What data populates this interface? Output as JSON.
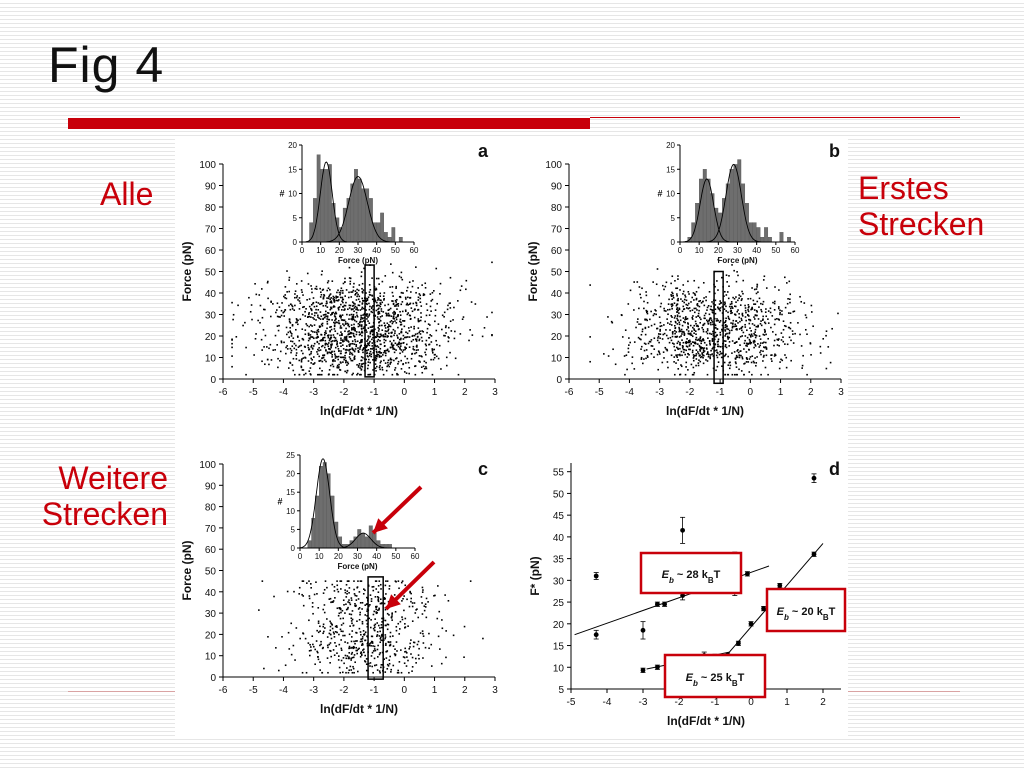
{
  "slide": {
    "title": "Fig 4",
    "labels": {
      "alle": "Alle",
      "erstes_line1": "Erstes",
      "erstes_line2": "Strecken",
      "weitere_line1": "Weitere",
      "weitere_line2": "Strecken"
    },
    "colors": {
      "accent_red": "#c8000a",
      "marker": "#000000"
    }
  },
  "chart_data": [
    {
      "panel": "a",
      "type": "scatter",
      "xlabel": "ln(dF/dt * 1/N)",
      "ylabel": "Force (pN)",
      "xlim": [
        -6,
        3
      ],
      "ylim": [
        0,
        100
      ],
      "xticks": [
        -6,
        -5,
        -4,
        -3,
        -2,
        -1,
        0,
        1,
        2,
        3
      ],
      "yticks": [
        0,
        10,
        20,
        30,
        40,
        50,
        60,
        70,
        80,
        90,
        100
      ],
      "points": {
        "count": 1600,
        "x_center": -1.5,
        "x_spread": 1.5,
        "x_range": [
          -5.7,
          2.9
        ],
        "y_range": [
          2,
          62
        ],
        "y_modes": [
          12,
          30
        ]
      },
      "selection_box": {
        "x": [
          -1.3,
          -1.0
        ],
        "y": [
          1,
          53
        ]
      },
      "inset_histogram": {
        "xlabel": "Force (pN)",
        "ylabel": "#",
        "xlim": [
          0,
          60
        ],
        "ylim": [
          0,
          20
        ],
        "xticks": [
          0,
          10,
          20,
          30,
          40,
          50,
          60
        ],
        "yticks": [
          0,
          5,
          10,
          15,
          20
        ],
        "bin_width": 2,
        "bin_start": [
          4,
          6,
          8,
          10,
          12,
          14,
          16,
          18,
          20,
          22,
          24,
          26,
          28,
          30,
          32,
          34,
          36,
          38,
          40,
          42,
          44,
          46,
          48,
          50,
          52
        ],
        "counts": [
          4,
          9,
          18,
          15,
          15,
          16,
          8,
          5,
          3,
          7,
          9,
          12,
          15,
          13,
          11,
          11,
          9,
          4,
          4,
          6,
          2,
          1,
          3,
          0,
          1
        ],
        "fits": [
          {
            "mean": 13,
            "sigma": 3.2,
            "amp": 16.5
          },
          {
            "mean": 30,
            "sigma": 5,
            "amp": 13.5
          }
        ]
      }
    },
    {
      "panel": "b",
      "type": "scatter",
      "xlabel": "ln(dF/dt * 1/N)",
      "ylabel": "Force (pN)",
      "xlim": [
        -6,
        3
      ],
      "ylim": [
        0,
        100
      ],
      "xticks": [
        -6,
        -5,
        -4,
        -3,
        -2,
        -1,
        0,
        1,
        2,
        3
      ],
      "yticks": [
        0,
        10,
        20,
        30,
        40,
        50,
        60,
        70,
        80,
        90,
        100
      ],
      "points": {
        "count": 1100,
        "x_center": -1.2,
        "x_spread": 1.4,
        "x_range": [
          -5.3,
          2.9
        ],
        "y_range": [
          2,
          62
        ],
        "y_modes": [
          13,
          28
        ]
      },
      "selection_box": {
        "x": [
          -1.2,
          -0.9
        ],
        "y": [
          -2,
          50
        ]
      },
      "inset_histogram": {
        "xlabel": "Force (pN)",
        "ylabel": "#",
        "xlim": [
          0,
          60
        ],
        "ylim": [
          0,
          20
        ],
        "xticks": [
          0,
          10,
          20,
          30,
          40,
          50,
          60
        ],
        "yticks": [
          0,
          5,
          10,
          15,
          20
        ],
        "bin_width": 2,
        "bin_start": [
          4,
          6,
          8,
          10,
          12,
          14,
          16,
          18,
          20,
          22,
          24,
          26,
          28,
          30,
          32,
          34,
          36,
          38,
          40,
          42,
          44,
          46,
          48,
          50,
          52,
          54,
          56
        ],
        "counts": [
          1,
          4,
          8,
          13,
          15,
          13,
          10,
          7,
          6,
          9,
          12,
          15,
          16,
          17,
          12,
          8,
          4,
          4,
          3,
          1,
          3,
          1,
          0,
          0,
          2,
          0,
          1
        ],
        "fits": [
          {
            "mean": 14,
            "sigma": 3.5,
            "amp": 13
          },
          {
            "mean": 28,
            "sigma": 4,
            "amp": 16
          }
        ]
      }
    },
    {
      "panel": "c",
      "type": "scatter",
      "xlabel": "ln(dF/dt * 1/N)",
      "ylabel": "Force (pN)",
      "xlim": [
        -6,
        3
      ],
      "ylim": [
        0,
        100
      ],
      "xticks": [
        -6,
        -5,
        -4,
        -3,
        -2,
        -1,
        0,
        1,
        2,
        3
      ],
      "yticks": [
        0,
        10,
        20,
        30,
        40,
        50,
        60,
        70,
        80,
        90,
        100
      ],
      "points": {
        "count": 650,
        "x_center": -1.3,
        "x_spread": 1.2,
        "x_range": [
          -5.3,
          2.6
        ],
        "y_range": [
          2,
          45
        ],
        "y_modes": [
          11,
          32
        ]
      },
      "selection_box": {
        "x": [
          -1.2,
          -0.7
        ],
        "y": [
          -1,
          47
        ]
      },
      "inset_histogram": {
        "xlabel": "Force (pN)",
        "ylabel": "#",
        "xlim": [
          0,
          60
        ],
        "ylim": [
          0,
          25
        ],
        "xticks": [
          0,
          10,
          20,
          30,
          40,
          50,
          60
        ],
        "yticks": [
          0,
          5,
          10,
          15,
          20,
          25
        ],
        "bin_width": 2,
        "bin_start": [
          4,
          6,
          8,
          10,
          12,
          14,
          16,
          18,
          20,
          22,
          24,
          26,
          28,
          30,
          32,
          34,
          36,
          38,
          40,
          42,
          44,
          46
        ],
        "counts": [
          2,
          8,
          14,
          22,
          23,
          20,
          14,
          7,
          3,
          1,
          1,
          2,
          3,
          5,
          4,
          3,
          6,
          4,
          2,
          1,
          1,
          1
        ],
        "fits": [
          {
            "mean": 12,
            "sigma": 3.5,
            "amp": 24
          },
          {
            "mean": 33,
            "sigma": 4,
            "amp": 4
          }
        ]
      },
      "annotations": [
        {
          "type": "arrow",
          "color": "#c8000a",
          "points_to": "inset histogram second peak"
        },
        {
          "type": "arrow",
          "color": "#c8000a",
          "points_to": "high-force points inside selection box"
        }
      ]
    },
    {
      "panel": "d",
      "type": "scatter",
      "xlabel": "ln(dF/dt * 1/N)",
      "ylabel": "F* (pN)",
      "xlim": [
        -5,
        2.5
      ],
      "ylim": [
        5,
        57
      ],
      "xticks": [
        -5,
        -4,
        -3,
        -2,
        -1,
        0,
        1,
        2
      ],
      "yticks": [
        5,
        10,
        15,
        20,
        25,
        30,
        35,
        40,
        45,
        50,
        55
      ],
      "series": [
        {
          "points": [
            {
              "x": -4.3,
              "y": 31,
              "err": 0.8
            },
            {
              "x": -4.3,
              "y": 17.5,
              "err": 1
            },
            {
              "x": -3.0,
              "y": 18.5,
              "err": 2
            },
            {
              "x": -2.6,
              "y": 24.5,
              "err": 0.5
            },
            {
              "x": -2.4,
              "y": 24.5,
              "err": 0.5
            },
            {
              "x": -1.9,
              "y": 26.5,
              "err": 1
            },
            {
              "x": -1.9,
              "y": 41.5,
              "err": 3
            },
            {
              "x": -1.6,
              "y": 28.8,
              "err": 0.5
            },
            {
              "x": -1.4,
              "y": 29.5,
              "err": 0.5
            },
            {
              "x": -1.15,
              "y": 28.5,
              "err": 0.5
            },
            {
              "x": -0.9,
              "y": 29,
              "err": 0.5
            },
            {
              "x": -0.65,
              "y": 29,
              "err": 0.5
            },
            {
              "x": -0.45,
              "y": 31.5,
              "err": 5
            },
            {
              "x": -0.1,
              "y": 31.5,
              "err": 0.5
            },
            {
              "x": 1.75,
              "y": 53.5,
              "err": 1
            }
          ]
        },
        {
          "points": [
            {
              "x": -3.0,
              "y": 9.3,
              "err": 0.5
            },
            {
              "x": -2.6,
              "y": 10,
              "err": 0.5
            },
            {
              "x": -2.2,
              "y": 10.5,
              "err": 0.5
            },
            {
              "x": -1.9,
              "y": 11,
              "err": 0.5
            },
            {
              "x": -1.6,
              "y": 11.5,
              "err": 0.5
            },
            {
              "x": -1.3,
              "y": 12.7,
              "err": 0.8
            },
            {
              "x": -1.0,
              "y": 12.5,
              "err": 0.5
            },
            {
              "x": -0.65,
              "y": 12.8,
              "err": 0.5
            },
            {
              "x": -0.35,
              "y": 15.5,
              "err": 0.5
            },
            {
              "x": 0.0,
              "y": 20,
              "err": 0.5
            },
            {
              "x": 0.35,
              "y": 23.5,
              "err": 0.5
            },
            {
              "x": 0.8,
              "y": 28.8,
              "err": 0.5
            },
            {
              "x": 1.75,
              "y": 36,
              "err": 0.5
            }
          ]
        }
      ],
      "fit_lines": [
        {
          "x": [
            -4.9,
            0.5
          ],
          "y": [
            17.5,
            33.3
          ]
        },
        {
          "x": [
            -2.9,
            -0.6
          ],
          "y": [
            9.6,
            13.5
          ]
        },
        {
          "x": [
            -0.6,
            2.0
          ],
          "y": [
            13.5,
            38.5
          ]
        }
      ],
      "label_boxes": [
        {
          "text_prefix": "E",
          "text_sub1": "b",
          "text_mid": " ~ 28 k",
          "text_sub2": "B",
          "text_suffix": "T",
          "border_color": "#c8000a"
        },
        {
          "text_prefix": "E",
          "text_sub1": "b",
          "text_mid": " ~ 20 k",
          "text_sub2": "B",
          "text_suffix": "T",
          "border_color": "#c8000a"
        },
        {
          "text_prefix": "E",
          "text_sub1": "b",
          "text_mid": " ~ 25 k",
          "text_sub2": "B",
          "text_suffix": "T",
          "border_color": "#c8000a"
        }
      ]
    }
  ]
}
